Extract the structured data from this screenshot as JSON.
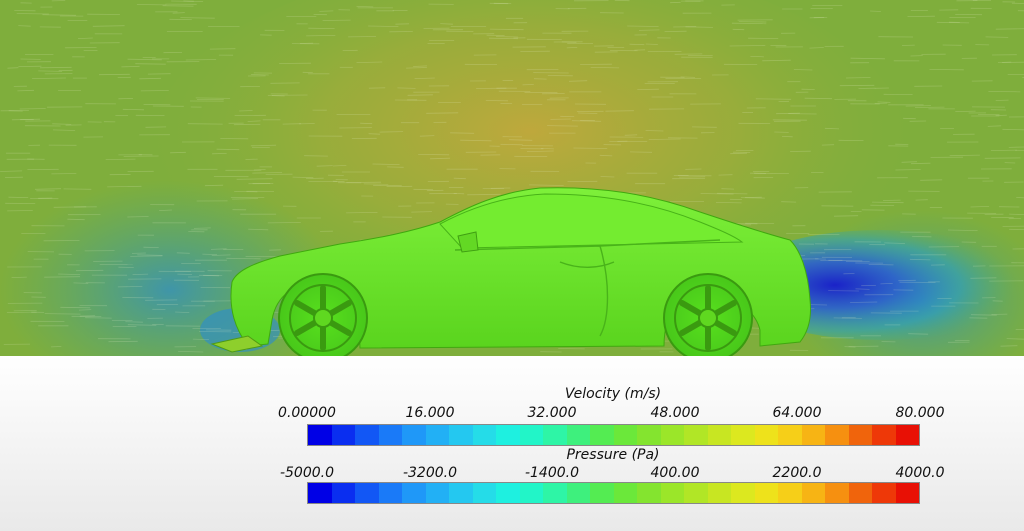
{
  "scene": {
    "description_colors": {
      "background_flow": "#7fb43a",
      "car_body": "#6be02a",
      "wake_low": "#2a3bc9",
      "ground_panel": "#f2f2f2"
    }
  },
  "legends": [
    {
      "title": "Velocity (m/s)",
      "ticks": [
        "0.00000",
        "16.000",
        "32.000",
        "48.000",
        "64.000",
        "80.000"
      ]
    },
    {
      "title": "Pressure (Pa)",
      "ticks": [
        "-5000.0",
        "-3200.0",
        "-1400.0",
        "400.00",
        "2200.0",
        "4000.0"
      ]
    }
  ],
  "colormap": [
    "#0000e6",
    "#0a2ef0",
    "#1257f5",
    "#1a7af8",
    "#1f98f8",
    "#22b0f5",
    "#24c8f0",
    "#25dce8",
    "#1ef0e0",
    "#22f5c8",
    "#2ef5a6",
    "#3ef07d",
    "#54ec52",
    "#6be83a",
    "#84e42f",
    "#9be629",
    "#b1e626",
    "#c8e622",
    "#dce81f",
    "#eee21b",
    "#f6cf18",
    "#f7b414",
    "#f69010",
    "#f0640c",
    "#ee3808",
    "#e81005"
  ]
}
